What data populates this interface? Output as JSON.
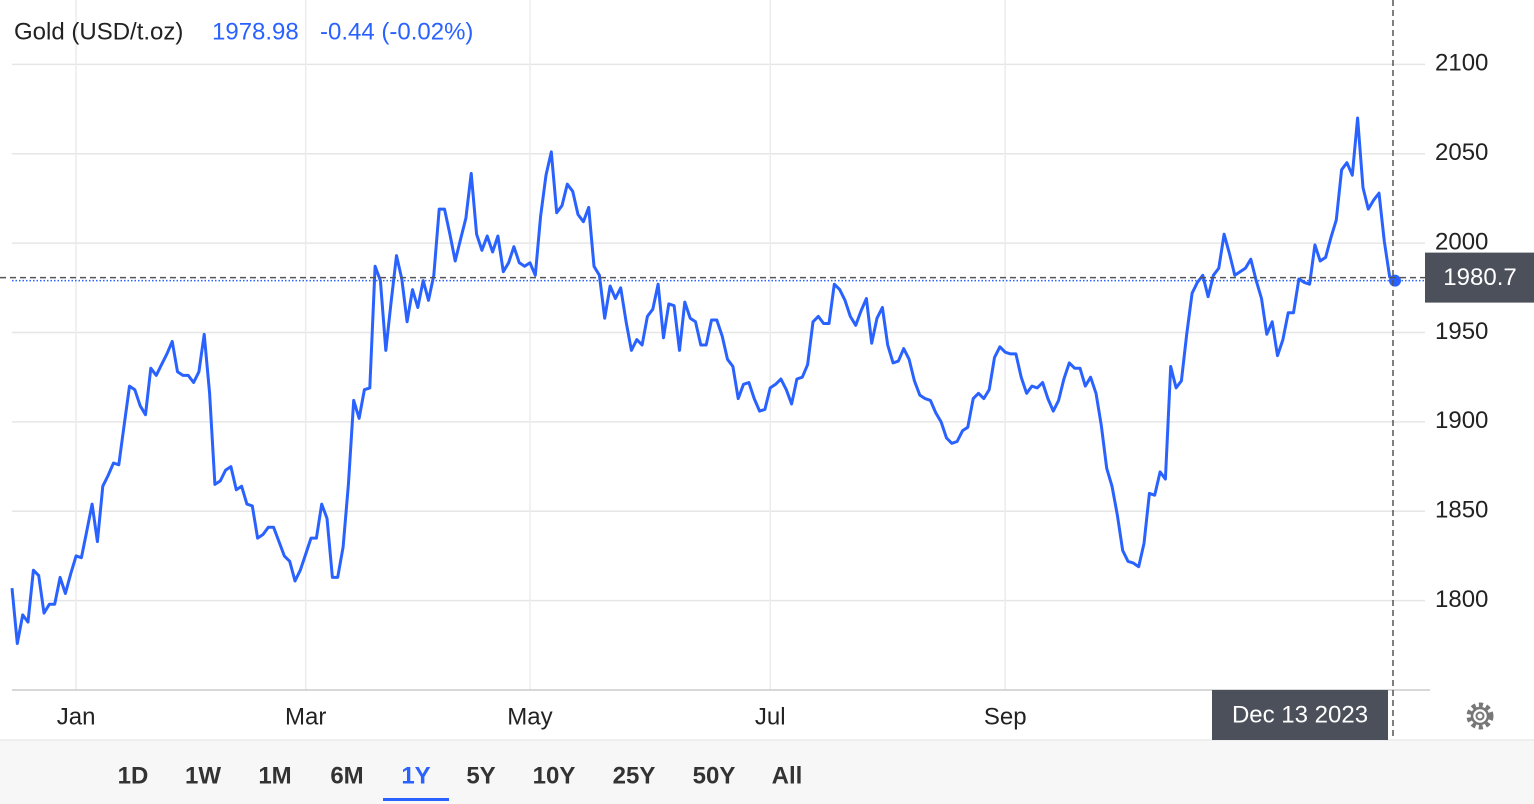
{
  "chart_data": {
    "type": "line",
    "title": "Gold (USD/t.oz)",
    "price": "1978.98",
    "change": "-0.44 (-0.02%)",
    "color": "#2962ff",
    "categories": [
      null,
      null,
      null,
      null,
      null,
      null,
      null,
      null,
      null,
      null,
      null,
      null,
      "Jan",
      null,
      null,
      null,
      null,
      null,
      null,
      null,
      null,
      null,
      null,
      null,
      null,
      null,
      null,
      null,
      null,
      null,
      null,
      null,
      null,
      null,
      null,
      null,
      null,
      null,
      null,
      null,
      null,
      null,
      null,
      null,
      null,
      null,
      null,
      null,
      null,
      null,
      null,
      null,
      null,
      null,
      null,
      "Mar",
      null,
      null,
      null,
      null,
      null,
      null,
      null,
      null,
      null,
      null,
      null,
      null,
      null,
      null,
      null,
      null,
      null,
      null,
      null,
      null,
      null,
      null,
      null,
      null,
      null,
      null,
      null,
      null,
      null,
      null,
      null,
      null,
      null,
      null,
      null,
      null,
      null,
      null,
      null,
      null,
      null,
      "May",
      null,
      null,
      null,
      null,
      null,
      null,
      null,
      null,
      null,
      null,
      null,
      null,
      null,
      null,
      null,
      null,
      null,
      null,
      null,
      null,
      null,
      null,
      null,
      null,
      null,
      null,
      null,
      null,
      null,
      null,
      null,
      null,
      null,
      null,
      null,
      null,
      null,
      null,
      null,
      null,
      null,
      null,
      null,
      null,
      "Jul",
      null,
      null,
      null,
      null,
      null,
      null,
      null,
      null,
      null,
      null,
      null,
      null,
      null,
      null,
      null,
      null,
      null,
      null,
      null,
      null,
      null,
      null,
      null,
      null,
      null,
      null,
      null,
      null,
      null,
      null,
      null,
      null,
      null,
      null,
      null,
      null,
      null,
      null,
      null,
      null,
      null,
      null,
      null,
      "Sep",
      null,
      null,
      null,
      null,
      null,
      null,
      null,
      null,
      null,
      null,
      null,
      null,
      null,
      null,
      null,
      null,
      null,
      null,
      null,
      null,
      null,
      null,
      null,
      null,
      null,
      null,
      null,
      null,
      null,
      null,
      null,
      null,
      null,
      null,
      null,
      null,
      null,
      null,
      null,
      null,
      null,
      null,
      null,
      null,
      null,
      null,
      null,
      null,
      null,
      null,
      null,
      null,
      null,
      null,
      null,
      null,
      null,
      null,
      null,
      null,
      null,
      null,
      null,
      null,
      null,
      null,
      null,
      null,
      null,
      null,
      null,
      null,
      null
    ],
    "values": [
      1807,
      1776,
      1792,
      1788,
      1817,
      1814,
      1793,
      1798,
      1798,
      1813,
      1804,
      1815,
      1825,
      1824,
      1839,
      1854,
      1833,
      1864,
      1870,
      1877,
      1876,
      1898,
      1920,
      1918,
      1909,
      1904,
      1930,
      1926,
      1932,
      1938,
      1945,
      1928,
      1926,
      1926,
      1922,
      1928,
      1949,
      1916,
      1865,
      1867,
      1873,
      1875,
      1862,
      1864,
      1854,
      1853,
      1835,
      1837,
      1841,
      1841,
      1833,
      1825,
      1822,
      1811,
      1817,
      1826,
      1835,
      1835,
      1854,
      1846,
      1813,
      1813,
      1830,
      1865,
      1912,
      1902,
      1918,
      1919,
      1987,
      1979,
      1940,
      1967,
      1993,
      1980,
      1956,
      1974,
      1964,
      1979,
      1968,
      1982,
      2019,
      2019,
      2005,
      1990,
      2002,
      2014,
      2039,
      2005,
      1996,
      2004,
      1995,
      2004,
      1984,
      1989,
      1998,
      1989,
      1987,
      1989,
      1982,
      2015,
      2038,
      2051,
      2017,
      2021,
      2033,
      2029,
      2016,
      2012,
      2020,
      1987,
      1982,
      1958,
      1976,
      1969,
      1975,
      1956,
      1940,
      1946,
      1943,
      1959,
      1963,
      1977,
      1947,
      1966,
      1965,
      1940,
      1967,
      1958,
      1956,
      1943,
      1943,
      1957,
      1957,
      1948,
      1935,
      1931,
      1913,
      1921,
      1922,
      1913,
      1906,
      1907,
      1919,
      1921,
      1924,
      1918,
      1910,
      1924,
      1925,
      1932,
      1956,
      1959,
      1955,
      1955,
      1977,
      1974,
      1968,
      1959,
      1954,
      1962,
      1969,
      1944,
      1958,
      1964,
      1943,
      1933,
      1934,
      1941,
      1935,
      1923,
      1915,
      1913,
      1912,
      1905,
      1900,
      1891,
      1888,
      1889,
      1895,
      1897,
      1913,
      1916,
      1913,
      1918,
      1936,
      1942,
      1939,
      1938,
      1938,
      1925,
      1916,
      1920,
      1919,
      1922,
      1913,
      1906,
      1912,
      1924,
      1933,
      1930,
      1930,
      1920,
      1925,
      1916,
      1898,
      1874,
      1864,
      1848,
      1828,
      1822,
      1821,
      1819,
      1832,
      1860,
      1859,
      1872,
      1868,
      1931,
      1919,
      1923,
      1949,
      1972,
      1978,
      1982,
      1970,
      1982,
      1986,
      2005,
      1994,
      1982,
      1984,
      1986,
      1991,
      1979,
      1969,
      1949,
      1956,
      1937,
      1946,
      1961,
      1961,
      1980,
      1978,
      1977,
      1999,
      1990,
      1992,
      2003,
      2013,
      2041,
      2045,
      2038,
      2070,
      2031,
      2019,
      2024,
      2028,
      2001,
      1981,
      1978.98
    ],
    "ylim": [
      1750,
      2136
    ],
    "yticks": [
      1800,
      1850,
      1900,
      1950,
      2000,
      2050,
      2100
    ],
    "grid": true,
    "crosshair_value": 1980.7,
    "crosshair_date": "Dec 13 2023",
    "ranges": [
      "1D",
      "1W",
      "1M",
      "6M",
      "1Y",
      "5Y",
      "10Y",
      "25Y",
      "50Y",
      "All"
    ],
    "active_range": "1Y"
  }
}
